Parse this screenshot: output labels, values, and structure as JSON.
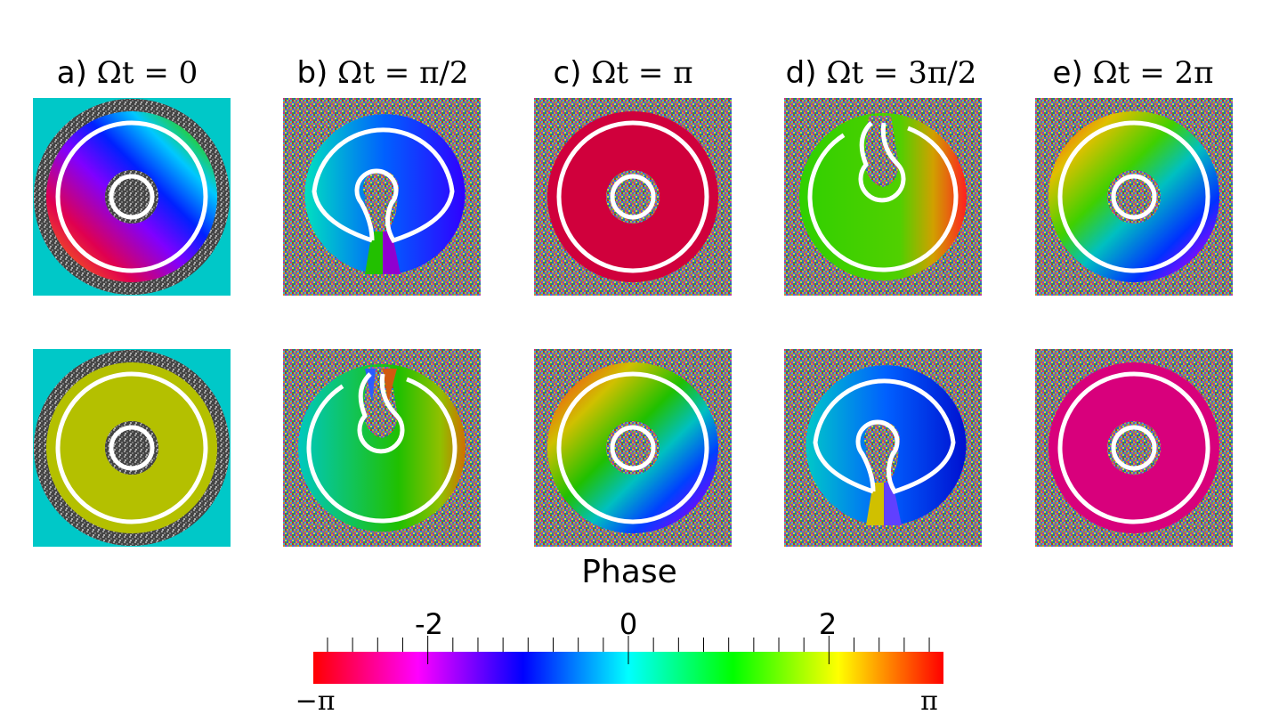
{
  "panels": [
    {
      "letter": "a)",
      "expr": "Ωt = 0"
    },
    {
      "letter": "b)",
      "expr": "Ωt = π/2"
    },
    {
      "letter": "c)",
      "expr": "Ωt = π"
    },
    {
      "letter": "d)",
      "expr": "Ωt = 3π/2"
    },
    {
      "letter": "e)",
      "expr": "Ωt = 2π"
    }
  ],
  "colorbar": {
    "title": "Phase",
    "min_label": "−π",
    "max_label": "π",
    "tick_labels": [
      "-2",
      "0",
      "2"
    ],
    "tick_values": [
      -2,
      0,
      2
    ],
    "range": [
      -3.14159,
      3.14159
    ],
    "colormap": "hsv"
  },
  "colors": {
    "background_a": "#00c8c8",
    "uniform_a_bottom": "#b4c000",
    "uniform_c_top": "#d0003c",
    "uniform_e_bottom": "#d8007c",
    "ring_line": "#ffffff"
  }
}
